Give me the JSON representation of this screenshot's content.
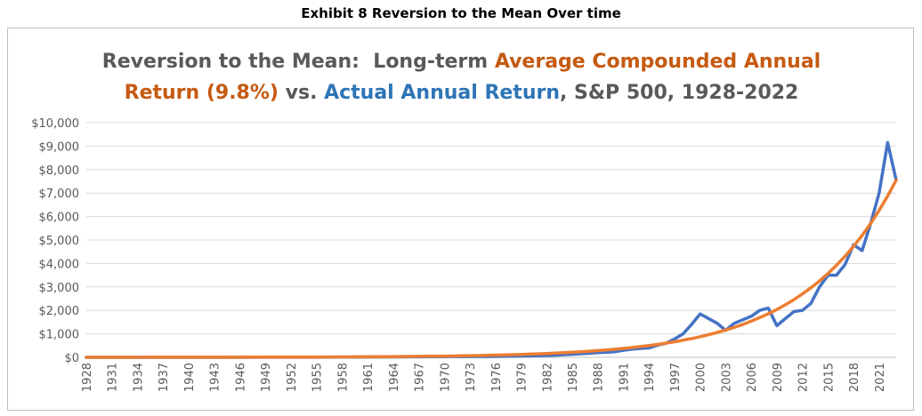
{
  "exhibit_label": "Exhibit 8 Reversion to the Mean Over time",
  "title": {
    "line1": [
      {
        "text": "Reversion to the Mean:  Long-term ",
        "color": "#595959"
      },
      {
        "text": "Average Compounded Annual",
        "color": "#c55a11"
      }
    ],
    "line2": [
      {
        "text": "Return (9.8%)",
        "color": "#c55a11"
      },
      {
        "text": " vs. ",
        "color": "#595959"
      },
      {
        "text": "Actual Annual Return",
        "color": "#2e75b6"
      },
      {
        "text": ", S&P 500, 1928-2022",
        "color": "#595959"
      }
    ]
  },
  "chart_data": {
    "type": "line",
    "title": "Reversion to the Mean:  Long-term Average Compounded Annual Return (9.8%) vs. Actual Annual Return, S&P 500, 1928-2022",
    "x_start": 1928,
    "x_end": 2023,
    "x_tick_labels": [
      "1928",
      "1931",
      "1934",
      "1937",
      "1940",
      "1943",
      "1946",
      "1949",
      "1952",
      "1955",
      "1958",
      "1961",
      "1964",
      "1967",
      "1970",
      "1973",
      "1976",
      "1979",
      "1982",
      "1985",
      "1988",
      "1991",
      "1994",
      "1997",
      "2000",
      "2003",
      "2006",
      "2009",
      "2012",
      "2015",
      "2018",
      "2021"
    ],
    "y_tick_labels": [
      "$0",
      "$1,000",
      "$2,000",
      "$3,000",
      "$4,000",
      "$5,000",
      "$6,000",
      "$7,000",
      "$8,000",
      "$9,000",
      "$10,000"
    ],
    "ylim": [
      0,
      10000
    ],
    "grid": true,
    "legend": "none",
    "series": [
      {
        "color": "#4472c4",
        "points": [
          [
            1928,
            0
          ],
          [
            1955,
            5
          ],
          [
            1965,
            20
          ],
          [
            1970,
            30
          ],
          [
            1975,
            35
          ],
          [
            1980,
            60
          ],
          [
            1983,
            90
          ],
          [
            1986,
            150
          ],
          [
            1988,
            200
          ],
          [
            1990,
            240
          ],
          [
            1991,
            300
          ],
          [
            1992,
            350
          ],
          [
            1993,
            380
          ],
          [
            1994,
            400
          ],
          [
            1995,
            520
          ],
          [
            1996,
            600
          ],
          [
            1997,
            780
          ],
          [
            1998,
            1000
          ],
          [
            1999,
            1400
          ],
          [
            2000,
            1850
          ],
          [
            2001,
            1650
          ],
          [
            2002,
            1450
          ],
          [
            2003,
            1150
          ],
          [
            2004,
            1450
          ],
          [
            2005,
            1600
          ],
          [
            2006,
            1750
          ],
          [
            2007,
            2000
          ],
          [
            2008,
            2100
          ],
          [
            2009,
            1350
          ],
          [
            2010,
            1650
          ],
          [
            2011,
            1950
          ],
          [
            2012,
            2000
          ],
          [
            2013,
            2300
          ],
          [
            2014,
            3000
          ],
          [
            2015,
            3500
          ],
          [
            2016,
            3500
          ],
          [
            2017,
            3950
          ],
          [
            2018,
            4800
          ],
          [
            2019,
            4550
          ],
          [
            2020,
            5700
          ],
          [
            2021,
            7000
          ],
          [
            2022,
            9150
          ],
          [
            2023,
            7550
          ]
        ]
      },
      {
        "color": "#ed7d31",
        "growth_rate": 0.098,
        "end_value": 7550
      }
    ]
  }
}
